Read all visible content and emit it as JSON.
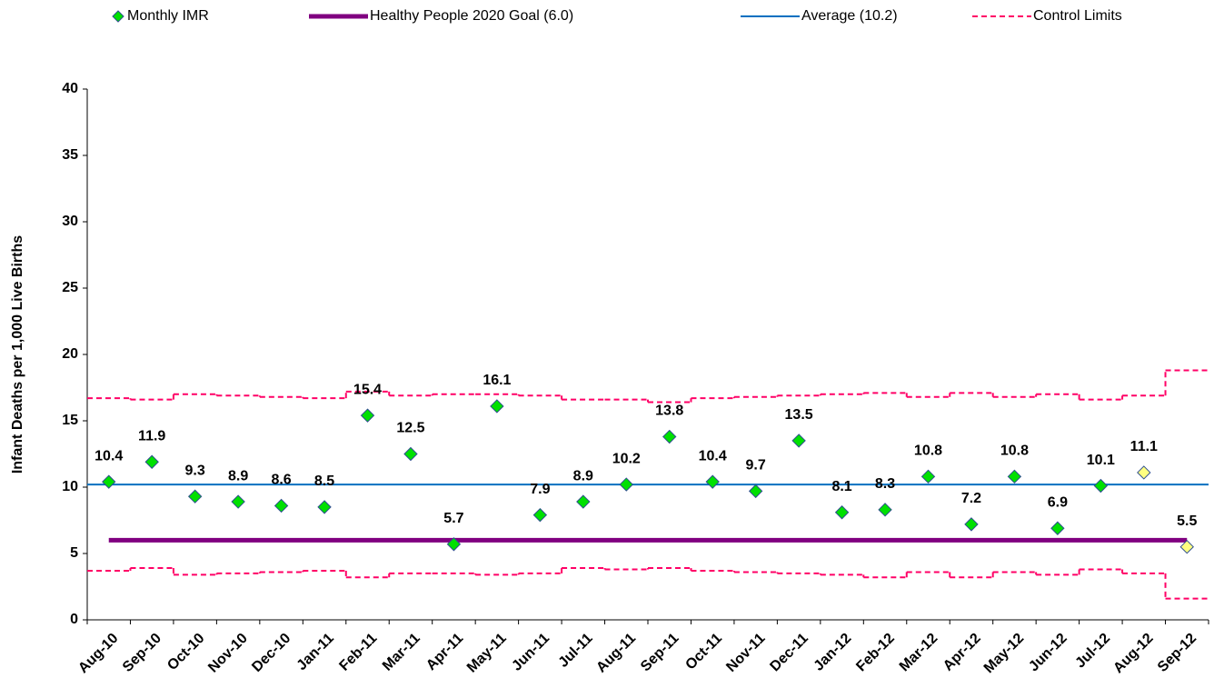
{
  "chart_data": {
    "type": "control",
    "y_label": "Infant Deaths  per 1,000 Live Births",
    "categories": [
      "Aug-10",
      "Sep-10",
      "Oct-10",
      "Nov-10",
      "Dec-10",
      "Jan-11",
      "Feb-11",
      "Mar-11",
      "Apr-11",
      "May-11",
      "Jun-11",
      "Jul-11",
      "Aug-11",
      "Sep-11",
      "Oct-11",
      "Nov-11",
      "Dec-11",
      "Jan-12",
      "Feb-12",
      "Mar-12",
      "Apr-12",
      "May-12",
      "Jun-12",
      "Jul-12",
      "Aug-12",
      "Sep-12"
    ],
    "ylim": [
      0,
      40
    ],
    "yticks": [
      0,
      5,
      10,
      15,
      20,
      25,
      30,
      35,
      40
    ],
    "series": [
      {
        "name": "Monthly IMR",
        "kind": "points",
        "color": "#00e000",
        "point_colors": [
          "#00e000",
          "#00e000",
          "#00e000",
          "#00e000",
          "#00e000",
          "#00e000",
          "#00e000",
          "#00e000",
          "#00e000",
          "#00e000",
          "#00e000",
          "#00e000",
          "#00e000",
          "#00e000",
          "#00e000",
          "#00e000",
          "#00e000",
          "#00e000",
          "#00e000",
          "#00e000",
          "#00e000",
          "#00e000",
          "#00e000",
          "#00e000",
          "#ffff80",
          "#ffff80"
        ],
        "values": [
          10.4,
          11.9,
          9.3,
          8.9,
          8.6,
          8.5,
          15.4,
          12.5,
          5.7,
          16.1,
          7.9,
          8.9,
          10.2,
          13.8,
          10.4,
          9.7,
          13.5,
          8.1,
          8.3,
          10.8,
          7.2,
          10.8,
          6.9,
          10.1,
          11.1,
          5.5
        ]
      },
      {
        "name": "Healthy People 2020 Goal (6.0)",
        "kind": "goal",
        "color": "#800080",
        "value": 6.0
      },
      {
        "name": "Average (10.2)",
        "kind": "average",
        "color": "#0070c0",
        "value": 10.2
      },
      {
        "name": "Control Limits",
        "kind": "limits",
        "color": "#ff0066",
        "upper": [
          16.7,
          16.6,
          17.0,
          16.9,
          16.8,
          16.7,
          17.2,
          16.9,
          17.0,
          17.0,
          16.9,
          16.6,
          16.6,
          16.4,
          16.7,
          16.8,
          16.9,
          17.0,
          17.1,
          16.8,
          17.1,
          16.8,
          17.0,
          16.6,
          16.9,
          18.8
        ],
        "lower": [
          3.7,
          3.9,
          3.4,
          3.5,
          3.6,
          3.7,
          3.2,
          3.5,
          3.5,
          3.4,
          3.5,
          3.9,
          3.8,
          3.9,
          3.7,
          3.6,
          3.5,
          3.4,
          3.2,
          3.6,
          3.2,
          3.6,
          3.4,
          3.8,
          3.5,
          1.6
        ]
      }
    ]
  }
}
